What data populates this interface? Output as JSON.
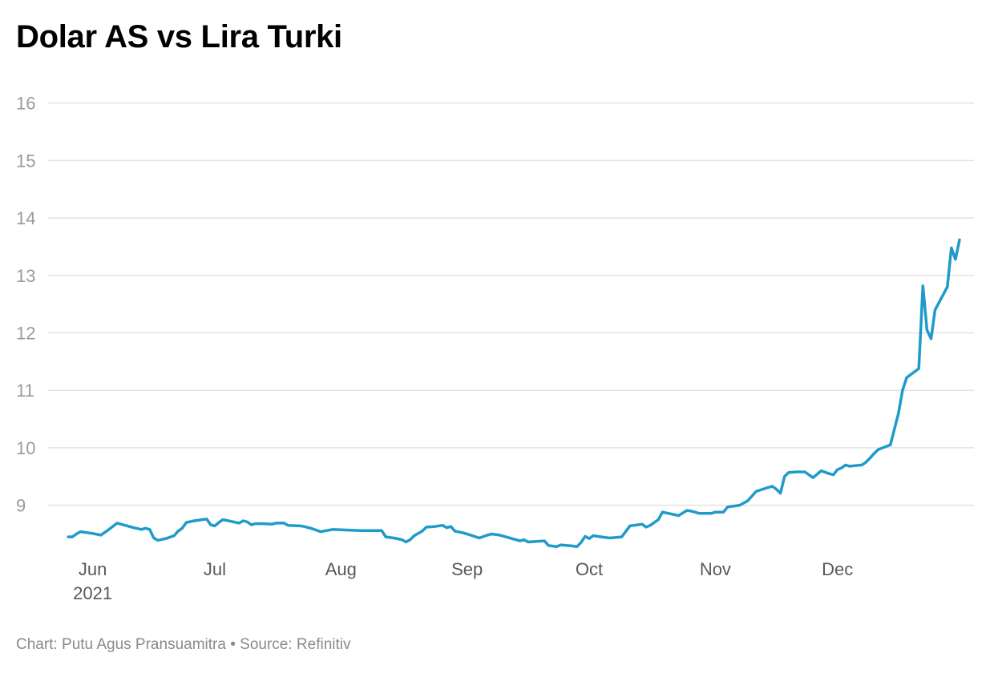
{
  "title": "Dolar AS vs Lira Turki",
  "footer": {
    "credit_label": "Chart:",
    "credit": "Putu Agus Pransuamitra",
    "separator": "•",
    "source_label": "Source:",
    "source": "Refinitiv"
  },
  "colors": {
    "line": "#1f9bc9",
    "grid": "#e3e3e3",
    "ytick": "#9a9a9a",
    "xtick": "#595959",
    "footer": "#8a8a8a"
  },
  "chart_data": {
    "type": "line",
    "title": "Dolar AS vs Lira Turki",
    "xlabel": "",
    "ylabel": "",
    "ylim": [
      8.2,
      16.4
    ],
    "xlim": [
      "2021-05-24",
      "2021-12-31"
    ],
    "grid": true,
    "y_ticks": [
      9,
      10,
      11,
      12,
      13,
      14,
      15,
      16
    ],
    "x_ticks": [
      {
        "date": "2021-06-01",
        "label": "Jun",
        "sublabel": "2021"
      },
      {
        "date": "2021-07-01",
        "label": "Jul",
        "sublabel": ""
      },
      {
        "date": "2021-08-01",
        "label": "Aug",
        "sublabel": ""
      },
      {
        "date": "2021-09-01",
        "label": "Sep",
        "sublabel": ""
      },
      {
        "date": "2021-10-01",
        "label": "Oct",
        "sublabel": ""
      },
      {
        "date": "2021-11-01",
        "label": "Nov",
        "sublabel": ""
      },
      {
        "date": "2021-12-01",
        "label": "Dec",
        "sublabel": ""
      }
    ],
    "series": [
      {
        "points": [
          [
            "2021-05-26",
            8.45
          ],
          [
            "2021-05-27",
            8.45
          ],
          [
            "2021-05-28",
            8.5
          ],
          [
            "2021-05-29",
            8.54
          ],
          [
            "2021-06-01",
            8.51
          ],
          [
            "2021-06-03",
            8.48
          ],
          [
            "2021-06-05",
            8.58
          ],
          [
            "2021-06-07",
            8.69
          ],
          [
            "2021-06-09",
            8.65
          ],
          [
            "2021-06-11",
            8.61
          ],
          [
            "2021-06-13",
            8.58
          ],
          [
            "2021-06-14",
            8.6
          ],
          [
            "2021-06-15",
            8.58
          ],
          [
            "2021-06-16",
            8.43
          ],
          [
            "2021-06-17",
            8.39
          ],
          [
            "2021-06-19",
            8.42
          ],
          [
            "2021-06-21",
            8.47
          ],
          [
            "2021-06-22",
            8.55
          ],
          [
            "2021-06-23",
            8.6
          ],
          [
            "2021-06-24",
            8.7
          ],
          [
            "2021-06-26",
            8.73
          ],
          [
            "2021-06-29",
            8.76
          ],
          [
            "2021-06-30",
            8.66
          ],
          [
            "2021-07-01",
            8.64
          ],
          [
            "2021-07-02",
            8.7
          ],
          [
            "2021-07-03",
            8.75
          ],
          [
            "2021-07-05",
            8.72
          ],
          [
            "2021-07-07",
            8.69
          ],
          [
            "2021-07-08",
            8.73
          ],
          [
            "2021-07-09",
            8.71
          ],
          [
            "2021-07-10",
            8.66
          ],
          [
            "2021-07-11",
            8.68
          ],
          [
            "2021-07-13",
            8.68
          ],
          [
            "2021-07-15",
            8.67
          ],
          [
            "2021-07-16",
            8.69
          ],
          [
            "2021-07-18",
            8.69
          ],
          [
            "2021-07-19",
            8.65
          ],
          [
            "2021-07-22",
            8.64
          ],
          [
            "2021-07-23",
            8.63
          ],
          [
            "2021-07-25",
            8.59
          ],
          [
            "2021-07-27",
            8.54
          ],
          [
            "2021-07-30",
            8.58
          ],
          [
            "2021-08-02",
            8.57
          ],
          [
            "2021-08-06",
            8.56
          ],
          [
            "2021-08-09",
            8.56
          ],
          [
            "2021-08-11",
            8.56
          ],
          [
            "2021-08-12",
            8.45
          ],
          [
            "2021-08-14",
            8.43
          ],
          [
            "2021-08-16",
            8.4
          ],
          [
            "2021-08-17",
            8.36
          ],
          [
            "2021-08-18",
            8.4
          ],
          [
            "2021-08-19",
            8.47
          ],
          [
            "2021-08-21",
            8.55
          ],
          [
            "2021-08-22",
            8.62
          ],
          [
            "2021-08-24",
            8.63
          ],
          [
            "2021-08-26",
            8.65
          ],
          [
            "2021-08-27",
            8.61
          ],
          [
            "2021-08-28",
            8.63
          ],
          [
            "2021-08-29",
            8.55
          ],
          [
            "2021-08-31",
            8.52
          ],
          [
            "2021-09-01",
            8.5
          ],
          [
            "2021-09-04",
            8.43
          ],
          [
            "2021-09-06",
            8.48
          ],
          [
            "2021-09-07",
            8.5
          ],
          [
            "2021-09-09",
            8.48
          ],
          [
            "2021-09-12",
            8.42
          ],
          [
            "2021-09-14",
            8.38
          ],
          [
            "2021-09-15",
            8.4
          ],
          [
            "2021-09-16",
            8.36
          ],
          [
            "2021-09-18",
            8.37
          ],
          [
            "2021-09-20",
            8.38
          ],
          [
            "2021-09-21",
            8.3
          ],
          [
            "2021-09-23",
            8.28
          ],
          [
            "2021-09-24",
            8.31
          ],
          [
            "2021-09-27",
            8.29
          ],
          [
            "2021-09-28",
            8.28
          ],
          [
            "2021-09-29",
            8.35
          ],
          [
            "2021-09-30",
            8.46
          ],
          [
            "2021-10-01",
            8.42
          ],
          [
            "2021-10-02",
            8.47
          ],
          [
            "2021-10-04",
            8.45
          ],
          [
            "2021-10-06",
            8.43
          ],
          [
            "2021-10-09",
            8.45
          ],
          [
            "2021-10-11",
            8.64
          ],
          [
            "2021-10-14",
            8.67
          ],
          [
            "2021-10-15",
            8.62
          ],
          [
            "2021-10-16",
            8.65
          ],
          [
            "2021-10-18",
            8.75
          ],
          [
            "2021-10-19",
            8.88
          ],
          [
            "2021-10-23",
            8.82
          ],
          [
            "2021-10-25",
            8.91
          ],
          [
            "2021-10-26",
            8.9
          ],
          [
            "2021-10-28",
            8.86
          ],
          [
            "2021-10-31",
            8.86
          ],
          [
            "2021-11-01",
            8.88
          ],
          [
            "2021-11-03",
            8.88
          ],
          [
            "2021-11-04",
            8.97
          ],
          [
            "2021-11-07",
            9.0
          ],
          [
            "2021-11-09",
            9.08
          ],
          [
            "2021-11-11",
            9.24
          ],
          [
            "2021-11-14",
            9.31
          ],
          [
            "2021-11-15",
            9.33
          ],
          [
            "2021-11-16",
            9.28
          ],
          [
            "2021-11-17",
            9.21
          ],
          [
            "2021-11-18",
            9.5
          ],
          [
            "2021-11-19",
            9.57
          ],
          [
            "2021-11-21",
            9.58
          ],
          [
            "2021-11-23",
            9.58
          ],
          [
            "2021-11-25",
            9.48
          ],
          [
            "2021-11-27",
            9.6
          ],
          [
            "2021-11-29",
            9.55
          ],
          [
            "2021-11-30",
            9.53
          ],
          [
            "2021-12-01",
            9.62
          ],
          [
            "2021-12-02",
            9.65
          ],
          [
            "2021-12-03",
            9.7
          ],
          [
            "2021-12-04",
            9.68
          ],
          [
            "2021-12-07",
            9.7
          ],
          [
            "2021-12-08",
            9.75
          ],
          [
            "2021-12-09",
            9.82
          ],
          [
            "2021-12-10",
            9.9
          ],
          [
            "2021-12-11",
            9.97
          ],
          [
            "2021-12-14",
            10.05
          ],
          [
            "2021-12-16",
            10.6
          ],
          [
            "2021-12-17",
            11.0
          ],
          [
            "2021-12-18",
            11.22
          ],
          [
            "2021-12-21",
            11.38
          ],
          [
            "2021-12-22",
            12.82
          ],
          [
            "2021-12-23",
            12.05
          ],
          [
            "2021-12-24",
            11.9
          ],
          [
            "2021-12-25",
            12.4
          ],
          [
            "2021-12-28",
            12.8
          ],
          [
            "2021-12-29",
            13.48
          ],
          [
            "2021-12-30",
            13.28
          ],
          [
            "2021-12-31",
            13.62
          ]
        ]
      }
    ]
  }
}
